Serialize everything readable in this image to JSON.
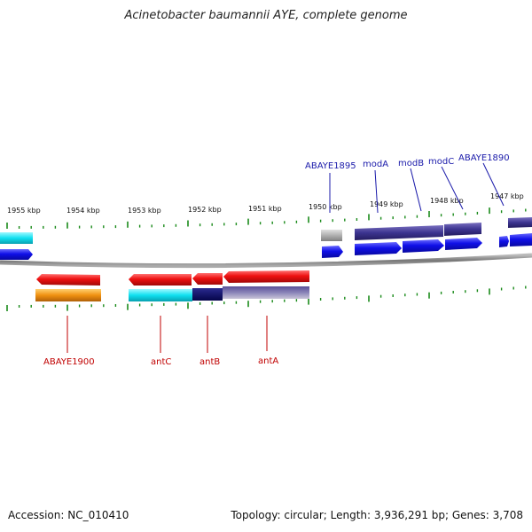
{
  "title": "Acinetobacter baumannii AYE, complete genome",
  "footer": {
    "accession": "Accession: NC_010410",
    "summary": "Topology: circular; Length: 3,936,291 bp; Genes: 3,708"
  },
  "scale": {
    "labels": [
      "1955 kbp",
      "1954 kbp",
      "1953 kbp",
      "1952 kbp",
      "1951 kbp",
      "1950 kbp",
      "1949 kbp",
      "1948 kbp",
      "1947 kbp"
    ]
  },
  "genes_top": [
    {
      "name": "ABAYE1895"
    },
    {
      "name": "modA"
    },
    {
      "name": "modB"
    },
    {
      "name": "modC"
    },
    {
      "name": "ABAYE1890"
    }
  ],
  "genes_bottom": [
    {
      "name": "ABAYE1900"
    },
    {
      "name": "antC"
    },
    {
      "name": "antB"
    },
    {
      "name": "antA"
    }
  ],
  "colors": {
    "forward_cds": "#1010e8",
    "reverse_cds": "#e81010",
    "backbone": "#888888",
    "tick": "#1a8a1a",
    "label_top": "#1a1aaa",
    "label_bottom": "#c00000"
  }
}
